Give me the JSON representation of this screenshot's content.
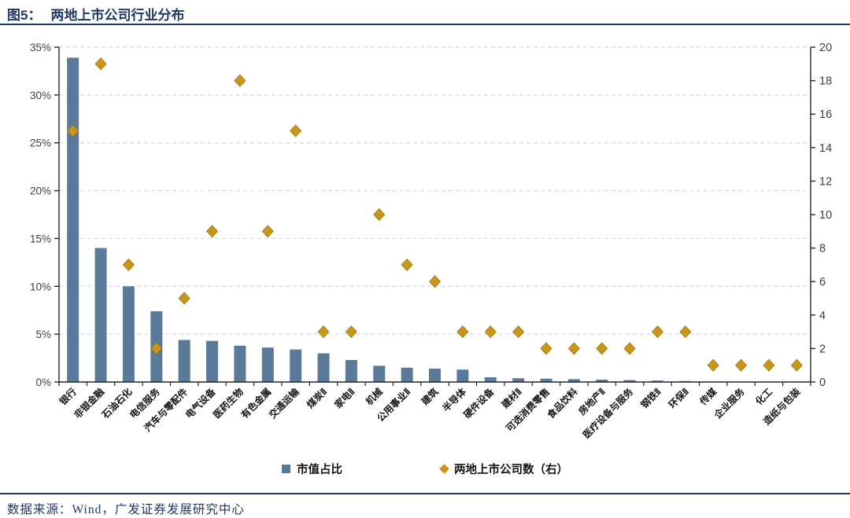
{
  "header": {
    "figure_label": "图5：",
    "title": "两地上市公司行业分布"
  },
  "footer": {
    "source": "数据来源：Wind，广发证券发展研究中心"
  },
  "colors": {
    "bar": "#5A7A99",
    "diamond": "#C9951B",
    "diamond_edge": "#9C7A10",
    "accent_navy": "#1F3864",
    "grid": "#D9D9D9",
    "axis_line": "#262626",
    "tick_label": "#3F3F3F",
    "category_label": "#141414"
  },
  "legend": {
    "items": [
      {
        "label": "市值占比",
        "marker": "square"
      },
      {
        "label": "两地上市公司数（右）",
        "marker": "diamond"
      }
    ]
  },
  "chart_data": {
    "type": "bar",
    "title": "两地上市公司行业分布",
    "categories": [
      "银行",
      "非银金融",
      "石油石化",
      "电信服务",
      "汽车与零配件",
      "电气设备",
      "医药生物",
      "有色金属",
      "交通运输",
      "煤炭Ⅱ",
      "家电Ⅱ",
      "机械",
      "公用事业Ⅱ",
      "建筑",
      "半导体",
      "硬件设备",
      "建材Ⅱ",
      "可选消费零售",
      "食品饮料",
      "房地产Ⅱ",
      "医疗设备与服务",
      "钢铁Ⅱ",
      "环保Ⅱ",
      "传媒",
      "企业服务",
      "化工",
      "造纸与包装"
    ],
    "series": [
      {
        "name": "市值占比",
        "type": "bar",
        "axis": "left",
        "unit": "%",
        "values": [
          33.9,
          14.0,
          10.0,
          7.4,
          4.4,
          4.3,
          3.8,
          3.6,
          3.4,
          3.0,
          2.3,
          1.7,
          1.5,
          1.4,
          1.3,
          0.5,
          0.4,
          0.35,
          0.3,
          0.25,
          0.2,
          0.15,
          0.1,
          0.05,
          0.04,
          0.03,
          0.03
        ]
      },
      {
        "name": "两地上市公司数（右）",
        "type": "scatter",
        "axis": "right",
        "unit": "家",
        "values": [
          15,
          19,
          7,
          2,
          5,
          9,
          18,
          9,
          15,
          3,
          3,
          10,
          7,
          6,
          3,
          3,
          3,
          2,
          2,
          2,
          2,
          3,
          3,
          1,
          1,
          1,
          1
        ]
      }
    ],
    "left_axis": {
      "min": 0,
      "max": 35,
      "step": 5,
      "tick_labels": [
        "0%",
        "5%",
        "10%",
        "15%",
        "20%",
        "25%",
        "30%",
        "35%"
      ]
    },
    "right_axis": {
      "min": 0,
      "max": 20,
      "step": 2,
      "tick_labels": [
        "0",
        "2",
        "4",
        "6",
        "8",
        "10",
        "12",
        "14",
        "16",
        "18",
        "20"
      ]
    },
    "grid": "dashed horizontal lines at left-axis 5% steps",
    "legend_position": "bottom"
  }
}
